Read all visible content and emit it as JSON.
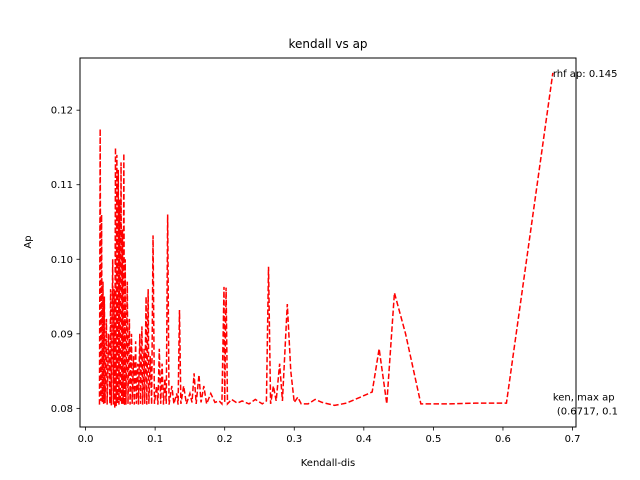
{
  "chart_data": {
    "type": "line",
    "title": "kendall vs ap",
    "xlabel": "Kendall-dis",
    "ylabel": "Ap",
    "xlim": [
      -0.008,
      0.705
    ],
    "ylim": [
      0.0775,
      0.127
    ],
    "xticks": [
      "0.0",
      "0.1",
      "0.2",
      "0.3",
      "0.4",
      "0.5",
      "0.6",
      "0.7"
    ],
    "xtick_values": [
      0.0,
      0.1,
      0.2,
      0.3,
      0.4,
      0.5,
      0.6,
      0.7
    ],
    "yticks": [
      "0.08",
      "0.09",
      "0.10",
      "0.11",
      "0.12"
    ],
    "ytick_values": [
      0.08,
      0.09,
      0.1,
      0.11,
      0.12
    ],
    "grid": false,
    "series": [
      {
        "color": "#ff0000",
        "linestyle": "dashed",
        "points": [
          [
            0.02,
            0.0805
          ],
          [
            0.021,
            0.1175
          ],
          [
            0.022,
            0.081
          ],
          [
            0.023,
            0.106
          ],
          [
            0.024,
            0.0808
          ],
          [
            0.025,
            0.097
          ],
          [
            0.026,
            0.0806
          ],
          [
            0.027,
            0.095
          ],
          [
            0.028,
            0.0807
          ],
          [
            0.03,
            0.092
          ],
          [
            0.031,
            0.0805
          ],
          [
            0.033,
            0.09
          ],
          [
            0.035,
            0.0806
          ],
          [
            0.036,
            0.096
          ],
          [
            0.037,
            0.0804
          ],
          [
            0.039,
            0.1
          ],
          [
            0.04,
            0.0805
          ],
          [
            0.041,
            0.096
          ],
          [
            0.042,
            0.08
          ],
          [
            0.043,
            0.115
          ],
          [
            0.044,
            0.0803
          ],
          [
            0.045,
            0.114
          ],
          [
            0.046,
            0.0806
          ],
          [
            0.047,
            0.112
          ],
          [
            0.048,
            0.0805
          ],
          [
            0.049,
            0.108
          ],
          [
            0.05,
            0.0808
          ],
          [
            0.051,
            0.113
          ],
          [
            0.052,
            0.0805
          ],
          [
            0.053,
            0.104
          ],
          [
            0.054,
            0.0806
          ],
          [
            0.055,
            0.1142
          ],
          [
            0.056,
            0.0804
          ],
          [
            0.057,
            0.1
          ],
          [
            0.058,
            0.0805
          ],
          [
            0.06,
            0.097
          ],
          [
            0.061,
            0.0806
          ],
          [
            0.063,
            0.092
          ],
          [
            0.064,
            0.0805
          ],
          [
            0.066,
            0.09
          ],
          [
            0.067,
            0.0806
          ],
          [
            0.069,
            0.087
          ],
          [
            0.07,
            0.0805
          ],
          [
            0.072,
            0.089
          ],
          [
            0.073,
            0.0806
          ],
          [
            0.075,
            0.086
          ],
          [
            0.076,
            0.0805
          ],
          [
            0.078,
            0.09
          ],
          [
            0.079,
            0.0806
          ],
          [
            0.081,
            0.091
          ],
          [
            0.082,
            0.0805
          ],
          [
            0.084,
            0.088
          ],
          [
            0.085,
            0.0806
          ],
          [
            0.087,
            0.095
          ],
          [
            0.088,
            0.0805
          ],
          [
            0.09,
            0.096
          ],
          [
            0.091,
            0.0806
          ],
          [
            0.093,
            0.087
          ],
          [
            0.095,
            0.0805
          ],
          [
            0.097,
            0.1032
          ],
          [
            0.099,
            0.0806
          ],
          [
            0.102,
            0.083
          ],
          [
            0.104,
            0.0805
          ],
          [
            0.106,
            0.088
          ],
          [
            0.108,
            0.0806
          ],
          [
            0.11,
            0.086
          ],
          [
            0.112,
            0.0805
          ],
          [
            0.114,
            0.084
          ],
          [
            0.116,
            0.0806
          ],
          [
            0.118,
            0.106
          ],
          [
            0.12,
            0.0805
          ],
          [
            0.124,
            0.083
          ],
          [
            0.127,
            0.0806
          ],
          [
            0.131,
            0.082
          ],
          [
            0.133,
            0.0805
          ],
          [
            0.135,
            0.0932
          ],
          [
            0.137,
            0.0806
          ],
          [
            0.141,
            0.083
          ],
          [
            0.145,
            0.0806
          ],
          [
            0.15,
            0.082
          ],
          [
            0.153,
            0.0808
          ],
          [
            0.156,
            0.0847
          ],
          [
            0.159,
            0.0806
          ],
          [
            0.163,
            0.0845
          ],
          [
            0.166,
            0.0808
          ],
          [
            0.17,
            0.083
          ],
          [
            0.174,
            0.0806
          ],
          [
            0.18,
            0.082
          ],
          [
            0.186,
            0.0808
          ],
          [
            0.192,
            0.081
          ],
          [
            0.196,
            0.0806
          ],
          [
            0.199,
            0.0963
          ],
          [
            0.2,
            0.0808
          ],
          [
            0.202,
            0.0962
          ],
          [
            0.204,
            0.0806
          ],
          [
            0.21,
            0.0812
          ],
          [
            0.218,
            0.0807
          ],
          [
            0.225,
            0.081
          ],
          [
            0.235,
            0.0806
          ],
          [
            0.244,
            0.0812
          ],
          [
            0.254,
            0.0806
          ],
          [
            0.26,
            0.081
          ],
          [
            0.263,
            0.099
          ],
          [
            0.266,
            0.0806
          ],
          [
            0.27,
            0.083
          ],
          [
            0.274,
            0.081
          ],
          [
            0.279,
            0.086
          ],
          [
            0.283,
            0.081
          ],
          [
            0.29,
            0.094
          ],
          [
            0.295,
            0.085
          ],
          [
            0.3,
            0.0808
          ],
          [
            0.305,
            0.0815
          ],
          [
            0.31,
            0.0806
          ],
          [
            0.32,
            0.0806
          ],
          [
            0.33,
            0.0812
          ],
          [
            0.34,
            0.0808
          ],
          [
            0.358,
            0.0804
          ],
          [
            0.375,
            0.0807
          ],
          [
            0.395,
            0.0815
          ],
          [
            0.412,
            0.0822
          ],
          [
            0.422,
            0.088
          ],
          [
            0.433,
            0.0806
          ],
          [
            0.444,
            0.0955
          ],
          [
            0.46,
            0.09
          ],
          [
            0.482,
            0.0806
          ],
          [
            0.52,
            0.0806
          ],
          [
            0.56,
            0.0807
          ],
          [
            0.605,
            0.0807
          ],
          [
            0.6717,
            0.125
          ]
        ]
      }
    ],
    "annotations": [
      {
        "lines": [
          "rhf ap: 0.145"
        ],
        "x": 0.6717,
        "y": 0.125
      },
      {
        "lines": [
          "ken, max ap",
          "(0.6717, 0.1"
        ],
        "x": 0.6717,
        "y": 0.08
      }
    ]
  }
}
